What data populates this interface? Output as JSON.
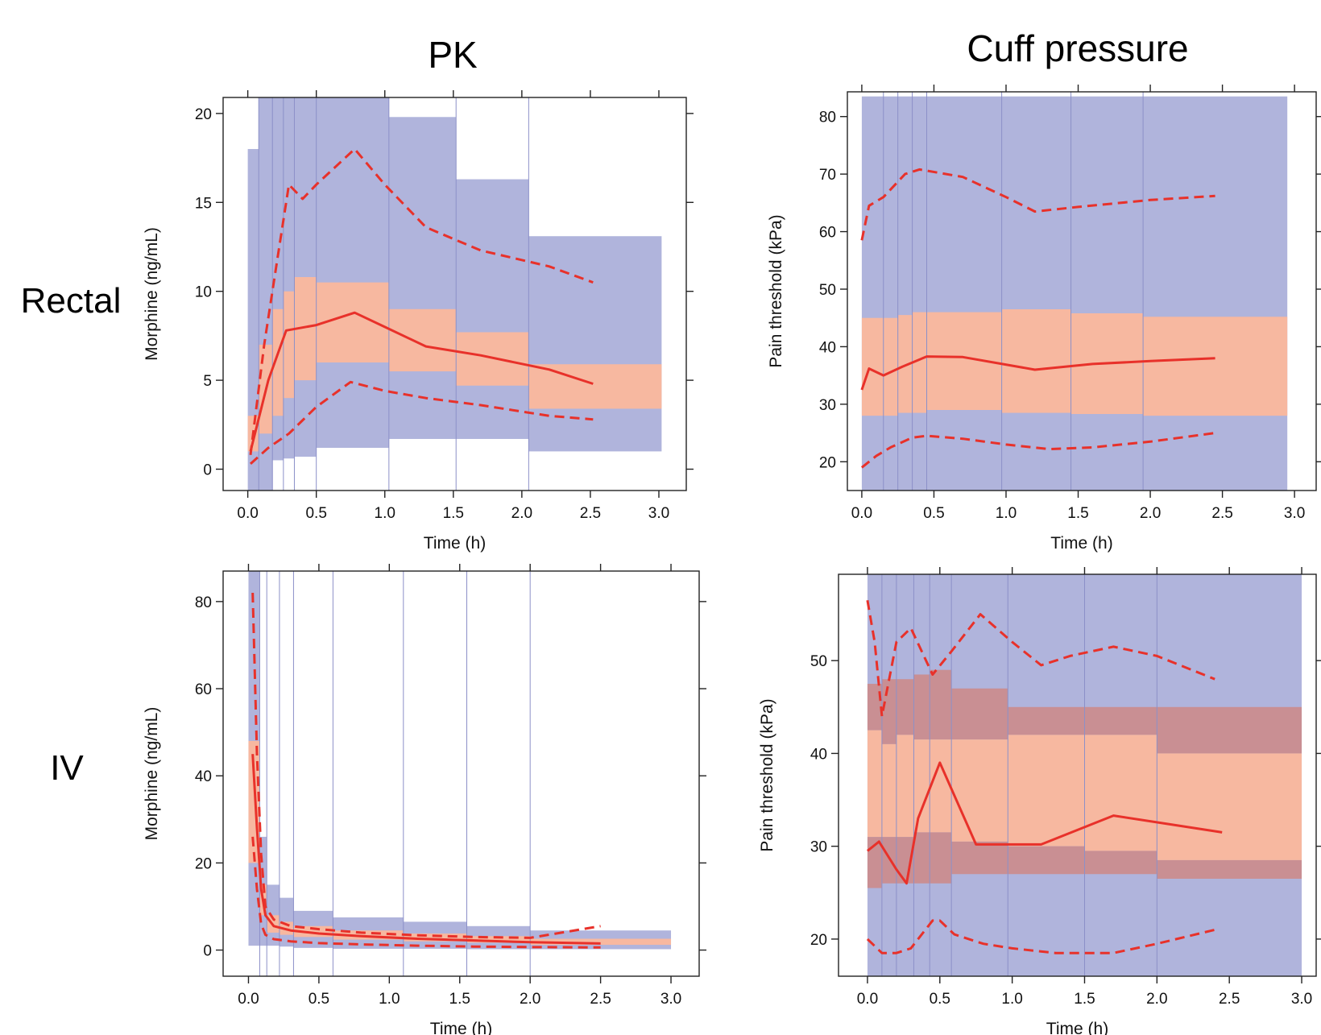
{
  "column_titles": [
    "PK",
    "Cuff pressure"
  ],
  "row_labels": [
    "Rectal",
    "IV"
  ],
  "colors": {
    "prediction_interval_outer": "#b0b4dc",
    "prediction_interval_median": "#f7b8a0",
    "prediction_interval_median_dark": "#c98f93",
    "observed_line": "#e8312a",
    "observed_points": "#3f4fb0",
    "bin_boundary": "#8c90c8"
  },
  "chart_data": [
    {
      "type": "line",
      "panel": "PK / Rectal",
      "xlabel": "Time (h)",
      "ylabel": "Morphine (ng/mL)",
      "xlim": [
        -0.18,
        3.2
      ],
      "ylim": [
        -1.2,
        20.9
      ],
      "xticks": [
        0.0,
        0.5,
        1.0,
        1.5,
        2.0,
        2.5,
        3.0
      ],
      "xtick_labels": [
        "0.0",
        "0.5",
        "1.0",
        "1.5",
        "2.0",
        "2.5",
        "3.0"
      ],
      "yticks": [
        0,
        5,
        10,
        15,
        20
      ],
      "ytick_labels": [
        "0",
        "5",
        "10",
        "15",
        "20"
      ],
      "bins": [
        {
          "x": [
            0.0,
            0.08
          ],
          "outer": [
            -1.2,
            18.0
          ],
          "median": [
            1.0,
            3.0
          ]
        },
        {
          "x": [
            0.08,
            0.18
          ],
          "outer": [
            -1.2,
            20.9
          ],
          "median": [
            2.0,
            7.0
          ]
        },
        {
          "x": [
            0.18,
            0.26
          ],
          "outer": [
            0.5,
            20.9
          ],
          "median": [
            3.0,
            9.0
          ]
        },
        {
          "x": [
            0.26,
            0.34
          ],
          "outer": [
            0.6,
            20.9
          ],
          "median": [
            4.0,
            10.0
          ]
        },
        {
          "x": [
            0.34,
            0.5
          ],
          "outer": [
            0.7,
            20.9
          ],
          "median": [
            5.0,
            10.8
          ]
        },
        {
          "x": [
            0.5,
            1.03
          ],
          "outer": [
            1.2,
            20.9
          ],
          "median": [
            6.0,
            10.5
          ]
        },
        {
          "x": [
            1.03,
            1.52
          ],
          "outer": [
            1.7,
            19.8
          ],
          "median": [
            5.5,
            9.0
          ]
        },
        {
          "x": [
            1.52,
            2.05
          ],
          "outer": [
            1.7,
            16.3
          ],
          "median": [
            4.7,
            7.7
          ]
        },
        {
          "x": [
            2.05,
            3.02
          ],
          "outer": [
            1.0,
            13.1
          ],
          "median": [
            3.4,
            5.9
          ]
        }
      ],
      "series": [
        {
          "style": "solid",
          "x": [
            0.02,
            0.15,
            0.28,
            0.5,
            0.78,
            1.0,
            1.3,
            1.7,
            2.2,
            2.52
          ],
          "y": [
            1.0,
            5.0,
            7.8,
            8.1,
            8.8,
            8.0,
            6.9,
            6.4,
            5.6,
            4.8
          ]
        },
        {
          "style": "dashed",
          "x": [
            0.02,
            0.12,
            0.22,
            0.3,
            0.4,
            0.5,
            0.78,
            1.0,
            1.3,
            1.7,
            2.2,
            2.52
          ],
          "y": [
            0.8,
            7.0,
            12.0,
            16.0,
            15.2,
            16.0,
            18.0,
            16.0,
            13.6,
            12.3,
            11.4,
            10.5
          ]
        },
        {
          "style": "dashed",
          "x": [
            0.02,
            0.15,
            0.3,
            0.5,
            0.75,
            1.0,
            1.3,
            1.7,
            2.2,
            2.52
          ],
          "y": [
            0.3,
            1.2,
            2.0,
            3.5,
            4.9,
            4.4,
            4.0,
            3.6,
            3.0,
            2.8
          ]
        }
      ]
    },
    {
      "type": "line",
      "panel": "Cuff pressure / Rectal",
      "xlabel": "Time (h)",
      "ylabel": "Pain threshold (kPa)",
      "xlim": [
        -0.1,
        3.15
      ],
      "ylim": [
        15.0,
        84.3
      ],
      "xticks": [
        0.0,
        0.5,
        1.0,
        1.5,
        2.0,
        2.5,
        3.0
      ],
      "xtick_labels": [
        "0.0",
        "0.5",
        "1.0",
        "1.5",
        "2.0",
        "2.5",
        "3.0"
      ],
      "yticks": [
        20,
        30,
        40,
        50,
        60,
        70,
        80
      ],
      "ytick_labels": [
        "20",
        "30",
        "40",
        "50",
        "60",
        "70",
        "80"
      ],
      "bins": [
        {
          "x": [
            0.0,
            0.15
          ],
          "outer": [
            15.0,
            83.5
          ],
          "median": [
            28.0,
            45.0
          ]
        },
        {
          "x": [
            0.15,
            0.25
          ],
          "outer": [
            15.0,
            83.5
          ],
          "median": [
            28.0,
            45.0
          ]
        },
        {
          "x": [
            0.25,
            0.35
          ],
          "outer": [
            15.0,
            83.5
          ],
          "median": [
            28.5,
            45.5
          ]
        },
        {
          "x": [
            0.35,
            0.45
          ],
          "outer": [
            15.0,
            83.5
          ],
          "median": [
            28.5,
            46.0
          ]
        },
        {
          "x": [
            0.45,
            0.97
          ],
          "outer": [
            15.0,
            83.5
          ],
          "median": [
            29.0,
            46.0
          ]
        },
        {
          "x": [
            0.97,
            1.45
          ],
          "outer": [
            15.0,
            83.5
          ],
          "median": [
            28.5,
            46.5
          ]
        },
        {
          "x": [
            1.45,
            1.95
          ],
          "outer": [
            15.0,
            83.5
          ],
          "median": [
            28.3,
            45.8
          ]
        },
        {
          "x": [
            1.95,
            2.95
          ],
          "outer": [
            15.0,
            83.5
          ],
          "median": [
            28.0,
            45.2
          ]
        }
      ],
      "series": [
        {
          "style": "solid",
          "x": [
            0.0,
            0.05,
            0.15,
            0.28,
            0.45,
            0.7,
            1.2,
            1.6,
            2.0,
            2.45
          ],
          "y": [
            32.5,
            36.2,
            35.0,
            36.5,
            38.3,
            38.2,
            36.0,
            37.0,
            37.5,
            38.0
          ]
        },
        {
          "style": "dashed",
          "x": [
            0.0,
            0.05,
            0.15,
            0.3,
            0.4,
            0.7,
            1.0,
            1.2,
            1.5,
            2.0,
            2.45
          ],
          "y": [
            58.5,
            64.5,
            66.0,
            70.0,
            70.8,
            69.5,
            66.0,
            63.5,
            64.3,
            65.5,
            66.2
          ]
        },
        {
          "style": "dashed",
          "x": [
            0.0,
            0.1,
            0.2,
            0.35,
            0.45,
            0.7,
            1.0,
            1.3,
            1.6,
            2.0,
            2.45
          ],
          "y": [
            19.0,
            21.0,
            22.5,
            24.2,
            24.5,
            24.0,
            23.0,
            22.2,
            22.5,
            23.5,
            25.0
          ]
        }
      ]
    },
    {
      "type": "line",
      "panel": "PK / IV",
      "xlabel": "Time (h)",
      "ylabel": "Morphine (ng/mL)",
      "xlim": [
        -0.18,
        3.2
      ],
      "ylim": [
        -6.0,
        87.0
      ],
      "xticks": [
        0.0,
        0.5,
        1.0,
        1.5,
        2.0,
        2.5,
        3.0
      ],
      "xtick_labels": [
        "0.0",
        "0.5",
        "1.0",
        "1.5",
        "2.0",
        "2.5",
        "3.0"
      ],
      "yticks": [
        0,
        20,
        40,
        60,
        80
      ],
      "ytick_labels": [
        "0",
        "20",
        "40",
        "60",
        "80"
      ],
      "bins": [
        {
          "x": [
            0.0,
            0.08
          ],
          "outer": [
            1.0,
            87.0
          ],
          "median": [
            20.0,
            48.0
          ]
        },
        {
          "x": [
            0.08,
            0.13
          ],
          "outer": [
            1.0,
            26.0
          ],
          "median": [
            8.0,
            15.0
          ]
        },
        {
          "x": [
            0.13,
            0.22
          ],
          "outer": [
            1.0,
            15.0
          ],
          "median": [
            4.0,
            8.0
          ]
        },
        {
          "x": [
            0.22,
            0.32
          ],
          "outer": [
            0.8,
            12.0
          ],
          "median": [
            3.5,
            6.5
          ]
        },
        {
          "x": [
            0.32,
            0.6
          ],
          "outer": [
            0.5,
            9.0
          ],
          "median": [
            3.0,
            5.5
          ]
        },
        {
          "x": [
            0.6,
            1.1
          ],
          "outer": [
            0.3,
            7.5
          ],
          "median": [
            2.4,
            4.5
          ]
        },
        {
          "x": [
            1.1,
            1.55
          ],
          "outer": [
            0.3,
            6.5
          ],
          "median": [
            2.0,
            3.8
          ]
        },
        {
          "x": [
            1.55,
            2.0
          ],
          "outer": [
            0.2,
            5.5
          ],
          "median": [
            1.7,
            3.2
          ]
        },
        {
          "x": [
            2.0,
            3.0
          ],
          "outer": [
            0.2,
            4.5
          ],
          "median": [
            1.2,
            2.6
          ]
        }
      ],
      "series": [
        {
          "style": "solid",
          "x": [
            0.03,
            0.06,
            0.09,
            0.12,
            0.18,
            0.3,
            0.5,
            0.8,
            1.2,
            1.6,
            2.0,
            2.5
          ],
          "y": [
            45.0,
            28.0,
            14.0,
            8.0,
            5.5,
            4.5,
            3.8,
            3.2,
            2.6,
            2.2,
            1.8,
            1.5
          ]
        },
        {
          "style": "dashed",
          "x": [
            0.03,
            0.06,
            0.09,
            0.12,
            0.18,
            0.3,
            0.5,
            0.8,
            1.2,
            1.6,
            2.0,
            2.5
          ],
          "y": [
            82.0,
            45.0,
            22.0,
            10.0,
            7.0,
            5.5,
            4.8,
            4.0,
            3.4,
            3.0,
            2.8,
            5.5
          ]
        },
        {
          "style": "dashed",
          "x": [
            0.03,
            0.06,
            0.09,
            0.12,
            0.18,
            0.3,
            0.5,
            0.8,
            1.2,
            1.6,
            2.0,
            2.5
          ],
          "y": [
            26.0,
            14.0,
            6.0,
            3.5,
            2.5,
            2.0,
            1.6,
            1.3,
            1.0,
            0.8,
            0.7,
            0.6
          ]
        }
      ]
    },
    {
      "type": "line",
      "panel": "Cuff pressure / IV",
      "xlabel": "Time (h)",
      "ylabel": "Pain threshold (kPa)",
      "xlim": [
        -0.2,
        3.1
      ],
      "ylim": [
        16.0,
        59.3
      ],
      "xticks": [
        0.0,
        0.5,
        1.0,
        1.5,
        2.0,
        2.5,
        3.0
      ],
      "xtick_labels": [
        "0.0",
        "0.5",
        "1.0",
        "1.5",
        "2.0",
        "2.5",
        "3.0"
      ],
      "yticks": [
        20,
        30,
        40,
        50
      ],
      "ytick_labels": [
        "20",
        "30",
        "40",
        "50"
      ],
      "bins": [
        {
          "x": [
            0.0,
            0.1
          ],
          "outer": [
            16.0,
            59.3
          ],
          "lo": [
            25.5,
            31.0
          ],
          "mid": [
            31.0,
            42.5
          ],
          "hi": [
            42.5,
            47.5
          ]
        },
        {
          "x": [
            0.1,
            0.2
          ],
          "outer": [
            16.0,
            59.3
          ],
          "lo": [
            26.0,
            31.0
          ],
          "mid": [
            31.0,
            41.0
          ],
          "hi": [
            41.0,
            48.0
          ]
        },
        {
          "x": [
            0.2,
            0.32
          ],
          "outer": [
            16.0,
            59.3
          ],
          "lo": [
            26.0,
            31.0
          ],
          "mid": [
            31.0,
            42.0
          ],
          "hi": [
            42.0,
            48.0
          ]
        },
        {
          "x": [
            0.32,
            0.43
          ],
          "outer": [
            16.0,
            59.3
          ],
          "lo": [
            26.0,
            31.5
          ],
          "mid": [
            31.5,
            41.5
          ],
          "hi": [
            41.5,
            48.5
          ]
        },
        {
          "x": [
            0.43,
            0.58
          ],
          "outer": [
            16.0,
            59.3
          ],
          "lo": [
            26.0,
            31.5
          ],
          "mid": [
            31.5,
            41.5
          ],
          "hi": [
            41.5,
            49.0
          ]
        },
        {
          "x": [
            0.58,
            0.97
          ],
          "outer": [
            16.0,
            59.3
          ],
          "lo": [
            27.0,
            30.5
          ],
          "mid": [
            30.5,
            41.5
          ],
          "hi": [
            41.5,
            47.0
          ]
        },
        {
          "x": [
            0.97,
            1.5
          ],
          "outer": [
            16.0,
            59.3
          ],
          "lo": [
            27.0,
            30.0
          ],
          "mid": [
            30.0,
            42.0
          ],
          "hi": [
            42.0,
            45.0
          ]
        },
        {
          "x": [
            1.5,
            2.0
          ],
          "outer": [
            16.0,
            59.3
          ],
          "lo": [
            27.0,
            29.5
          ],
          "mid": [
            29.5,
            42.0
          ],
          "hi": [
            42.0,
            45.0
          ]
        },
        {
          "x": [
            2.0,
            3.0
          ],
          "outer": [
            16.0,
            59.3
          ],
          "lo": [
            26.5,
            28.5
          ],
          "mid": [
            28.5,
            40.0
          ],
          "hi": [
            40.0,
            45.0
          ]
        }
      ],
      "series": [
        {
          "style": "solid",
          "x": [
            0.0,
            0.08,
            0.2,
            0.27,
            0.35,
            0.5,
            0.75,
            1.2,
            1.7,
            2.45
          ],
          "y": [
            29.5,
            30.5,
            27.5,
            26.0,
            33.0,
            39.0,
            30.2,
            30.2,
            33.3,
            31.5
          ]
        },
        {
          "style": "dashed",
          "x": [
            0.0,
            0.05,
            0.1,
            0.2,
            0.3,
            0.45,
            0.58,
            0.78,
            1.0,
            1.2,
            1.4,
            1.7,
            2.0,
            2.4
          ],
          "y": [
            56.5,
            52.0,
            44.0,
            52.0,
            53.5,
            48.5,
            51.0,
            55.0,
            52.0,
            49.5,
            50.5,
            51.5,
            50.5,
            48.0
          ]
        },
        {
          "style": "dashed",
          "x": [
            0.0,
            0.1,
            0.2,
            0.3,
            0.45,
            0.5,
            0.6,
            0.8,
            1.0,
            1.3,
            1.7,
            2.0,
            2.4
          ],
          "y": [
            20.0,
            18.5,
            18.5,
            19.0,
            22.0,
            22.0,
            20.5,
            19.5,
            19.0,
            18.5,
            18.5,
            19.5,
            21.0
          ]
        }
      ]
    }
  ]
}
